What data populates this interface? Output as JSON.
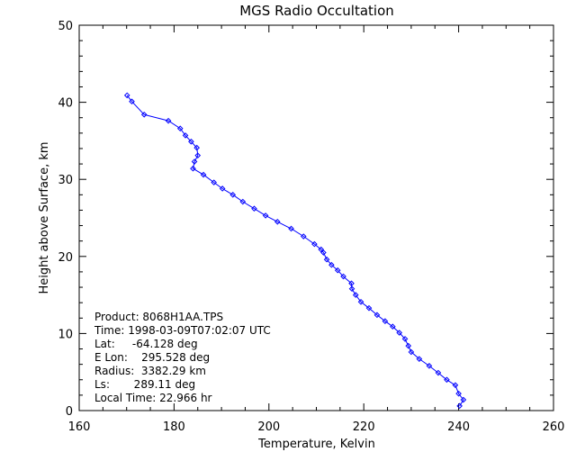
{
  "chart_data": {
    "type": "line",
    "title": "MGS Radio Occultation",
    "xlabel": "Temperature, Kelvin",
    "ylabel": "Height above Surface, km",
    "xlim": [
      160,
      260
    ],
    "ylim": [
      0,
      50
    ],
    "xticks": [
      "160",
      "180",
      "200",
      "220",
      "240",
      "260"
    ],
    "yticks": [
      "0",
      "10",
      "20",
      "30",
      "40",
      "50"
    ],
    "grid": false,
    "line_color": "#0000ff",
    "marker": "diamond",
    "x": [
      240.2,
      241.0,
      240.0,
      239.3,
      237.5,
      235.7,
      233.8,
      231.7,
      230.0,
      229.4,
      228.7,
      227.5,
      226.1,
      224.5,
      222.8,
      221.1,
      219.4,
      218.3,
      217.5,
      217.4,
      215.7,
      214.5,
      213.2,
      212.2,
      211.5,
      211.0,
      209.6,
      207.3,
      204.7,
      201.8,
      199.3,
      196.9,
      194.5,
      192.4,
      190.2,
      188.4,
      186.2,
      184.0,
      184.3,
      185.0,
      184.8,
      183.6,
      182.4,
      181.3,
      178.8,
      173.7,
      171.1,
      170.1
    ],
    "y": [
      0.6,
      1.4,
      2.2,
      3.3,
      4.0,
      4.9,
      5.8,
      6.7,
      7.6,
      8.4,
      9.3,
      10.1,
      10.9,
      11.6,
      12.4,
      13.3,
      14.1,
      15.0,
      15.8,
      16.5,
      17.4,
      18.2,
      18.9,
      19.6,
      20.5,
      20.9,
      21.6,
      22.6,
      23.6,
      24.5,
      25.3,
      26.2,
      27.1,
      28.0,
      28.8,
      29.6,
      30.6,
      31.4,
      32.3,
      33.1,
      34.1,
      34.9,
      35.7,
      36.6,
      37.6,
      38.4,
      40.1,
      40.9
    ]
  },
  "annotation": {
    "product": "Product: 8068H1AA.TPS",
    "time": "Time: 1998-03-09T07:02:07 UTC",
    "lat": "Lat:     -64.128 deg",
    "elon": "E Lon:    295.528 deg",
    "radius": "Radius:  3382.29 km",
    "ls": "Ls:       289.11 deg",
    "local_time": "Local Time: 22.966 hr"
  }
}
